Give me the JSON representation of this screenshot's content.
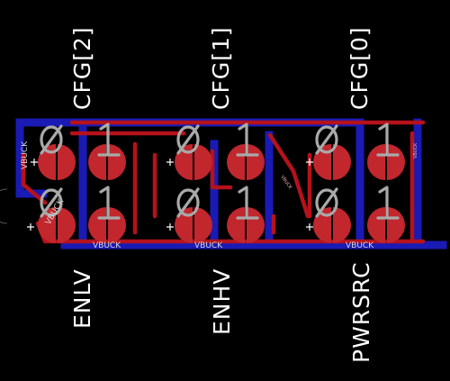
{
  "board": {
    "background": "#000000",
    "colors": {
      "top_copper": "#b5121b",
      "pad": "#c1272d",
      "bottom_copper": "#1a1ab5",
      "silkscreen": "#ffffff",
      "pad_number": "#a9a9a9"
    },
    "top_labels": [
      "CFG[2]",
      "CFG[1]",
      "CFG[0]"
    ],
    "bottom_labels": [
      "ENLV",
      "ENHV",
      "PWRSRC"
    ],
    "net_labels": {
      "vbuck_left_1": "VBUCK",
      "vbuck_left_2": "VBUCK",
      "vbuck_bottom_1": "VBUCK",
      "vbuck_bottom_2": "VBUCK",
      "vbuck_bottom_3": "VBUCK",
      "vbuck_diag": "VBUCK",
      "vbuck_right": "VBUCK"
    },
    "jumpers": [
      {
        "name": "cfg2",
        "pad_labels": [
          "0",
          "1"
        ]
      },
      {
        "name": "cfg1",
        "pad_labels": [
          "0",
          "1"
        ]
      },
      {
        "name": "cfg0",
        "pad_labels": [
          "0",
          "1"
        ]
      },
      {
        "name": "enlv",
        "pad_labels": [
          "0",
          "1"
        ]
      },
      {
        "name": "enhv",
        "pad_labels": [
          "0",
          "1"
        ]
      },
      {
        "name": "pwrsrc",
        "pad_labels": [
          "0",
          "1"
        ]
      }
    ]
  }
}
